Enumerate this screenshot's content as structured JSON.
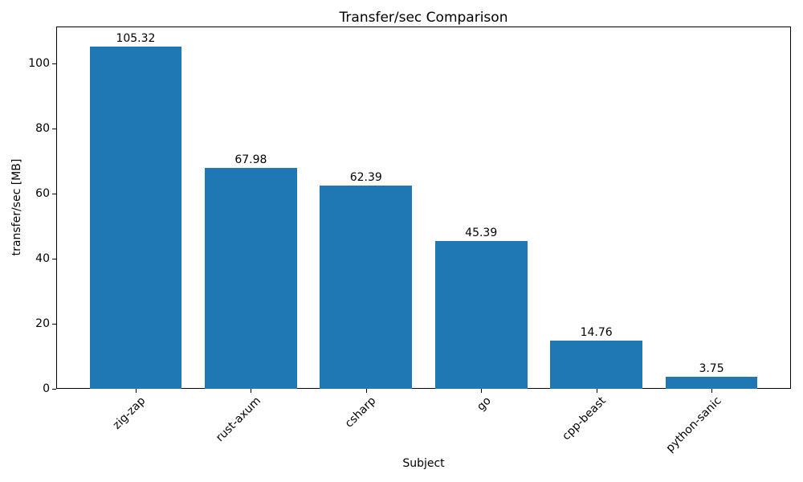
{
  "chart_data": {
    "type": "bar",
    "title": "Transfer/sec Comparison",
    "xlabel": "Subject",
    "ylabel": "transfer/sec [MB]",
    "categories": [
      "zig-zap",
      "rust-axum",
      "csharp",
      "go",
      "cpp-beast",
      "python-sanic"
    ],
    "values": [
      105.32,
      67.98,
      62.39,
      45.39,
      14.76,
      3.75
    ],
    "bar_labels": [
      "105.32",
      "67.98",
      "62.39",
      "45.39",
      "14.76",
      "3.75"
    ],
    "y_ticks": [
      0,
      20,
      40,
      60,
      80,
      100
    ],
    "ylim": [
      0,
      111.4
    ],
    "bar_color": "#1f77b4",
    "bar_width_fraction": 0.8,
    "grid": false,
    "legend": null
  }
}
